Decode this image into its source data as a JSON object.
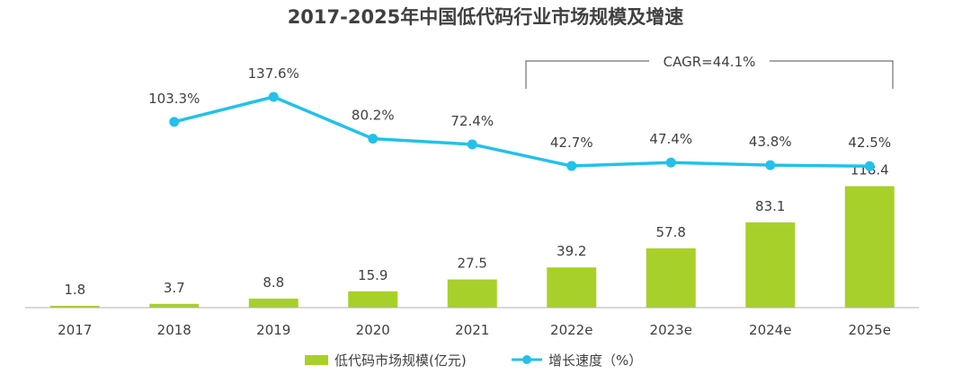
{
  "chart_data": {
    "type": "bar+line",
    "title": "2017-2025年中国低代码行业市场规模及增速",
    "categories": [
      "2017",
      "2018",
      "2019",
      "2020",
      "2021",
      "2022e",
      "2023e",
      "2024e",
      "2025e"
    ],
    "series": [
      {
        "name": "低代码市场规模(亿元)",
        "type": "bar",
        "color": "#a8d02a",
        "values": [
          1.8,
          3.7,
          8.8,
          15.9,
          27.5,
          39.2,
          57.8,
          83.1,
          118.4
        ]
      },
      {
        "name": "增长速度（%）",
        "type": "line",
        "color": "#23c1ea",
        "values": [
          null,
          103.3,
          137.6,
          80.2,
          72.4,
          42.7,
          47.4,
          43.8,
          42.5
        ],
        "labels": [
          "",
          "103.3%",
          "137.6%",
          "80.2%",
          "72.4%",
          "42.7%",
          "47.4%",
          "43.8%",
          "42.5%"
        ]
      }
    ],
    "annotation": {
      "text": "CAGR=44.1%",
      "from": "2022e",
      "to": "2025e"
    },
    "legend_position": "bottom",
    "grid": false
  }
}
